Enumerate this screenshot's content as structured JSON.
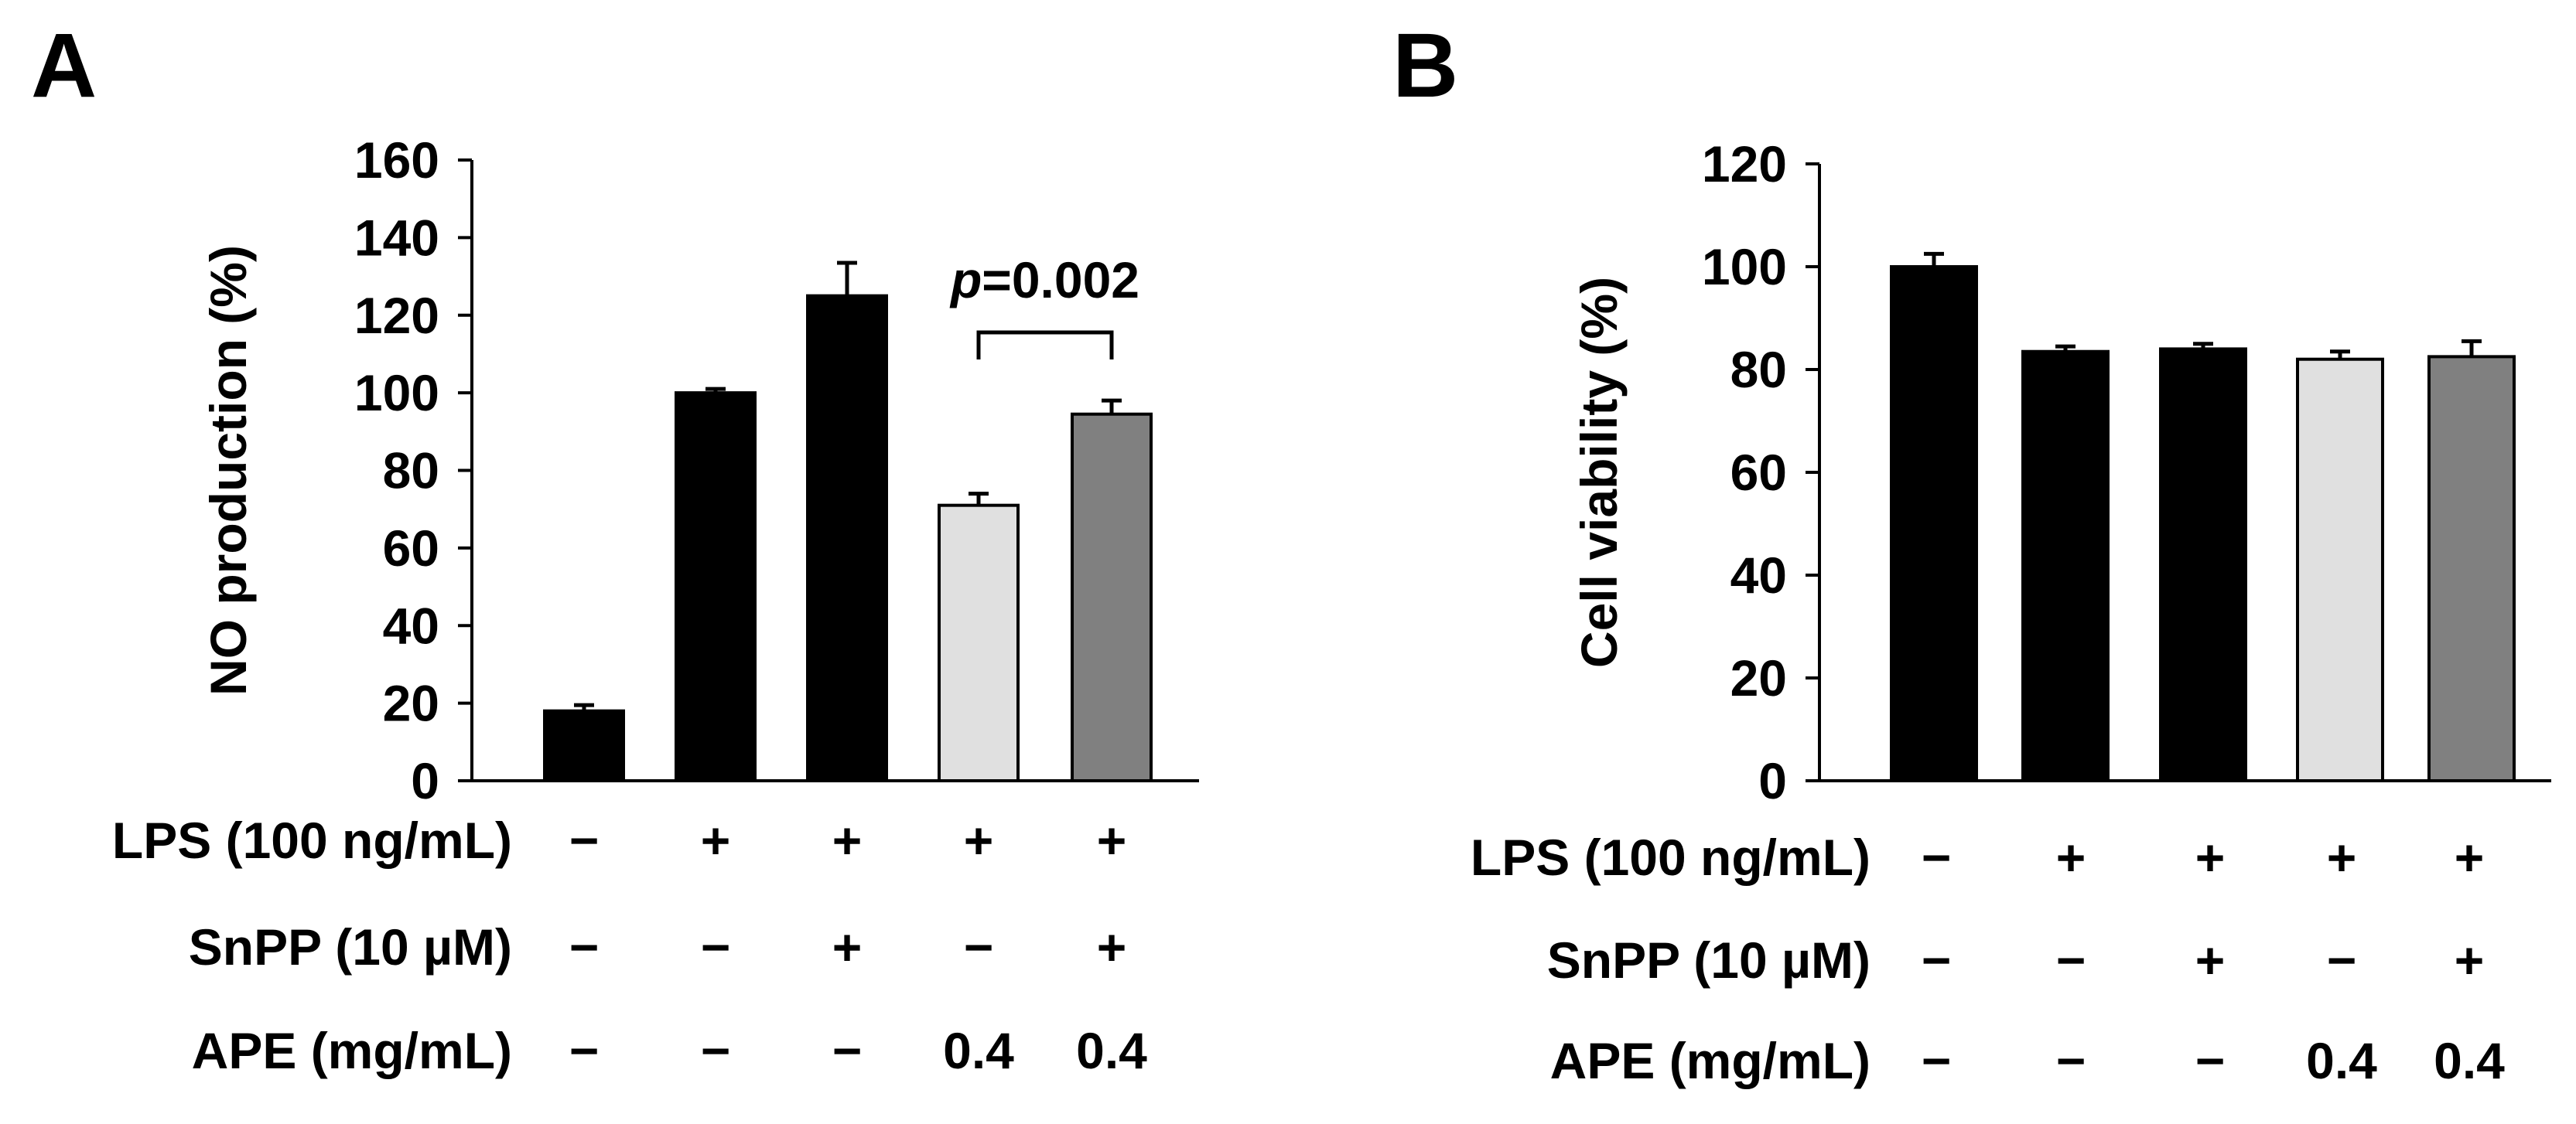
{
  "chart_data": [
    {
      "panel": "A",
      "type": "bar",
      "ylabel": "NO production (%)",
      "ylim": [
        0,
        160
      ],
      "yticks": [
        "0",
        "20",
        "40",
        "60",
        "80",
        "100",
        "120",
        "140",
        "160"
      ],
      "values": [
        18,
        100,
        125,
        71,
        94.5
      ],
      "errors": [
        1.5,
        1,
        8.5,
        3,
        3.5
      ],
      "colors": [
        "#000000",
        "#000000",
        "#000000",
        "#e0e0e0",
        "#808080"
      ],
      "annotation": {
        "italic": "p",
        "rest": "=0.002",
        "between": [
          3,
          4
        ]
      },
      "conditions": [
        {
          "label": "LPS (100 ng/mL)",
          "values": [
            "−",
            "+",
            "+",
            "+",
            "+"
          ]
        },
        {
          "label": "SnPP (10 µM)",
          "values": [
            "−",
            "−",
            "+",
            "−",
            "+"
          ]
        },
        {
          "label": "APE (mg/mL)",
          "values": [
            "−",
            "−",
            "−",
            "0.4",
            "0.4"
          ]
        }
      ]
    },
    {
      "panel": "B",
      "type": "bar",
      "ylabel": "Cell viability (%)",
      "ylim": [
        0,
        120
      ],
      "yticks": [
        "0",
        "20",
        "40",
        "60",
        "80",
        "100",
        "120"
      ],
      "values": [
        100,
        83.5,
        84,
        82,
        82.5
      ],
      "errors": [
        2.5,
        1,
        1,
        1.5,
        3
      ],
      "colors": [
        "#000000",
        "#000000",
        "#000000",
        "#e0e0e0",
        "#808080"
      ],
      "conditions": [
        {
          "label": "LPS (100 ng/mL)",
          "values": [
            "−",
            "+",
            "+",
            "+",
            "+"
          ]
        },
        {
          "label": "SnPP (10 µM)",
          "values": [
            "−",
            "−",
            "+",
            "−",
            "+"
          ]
        },
        {
          "label": "APE (mg/mL)",
          "values": [
            "−",
            "−",
            "−",
            "0.4",
            "0.4"
          ]
        }
      ]
    }
  ]
}
